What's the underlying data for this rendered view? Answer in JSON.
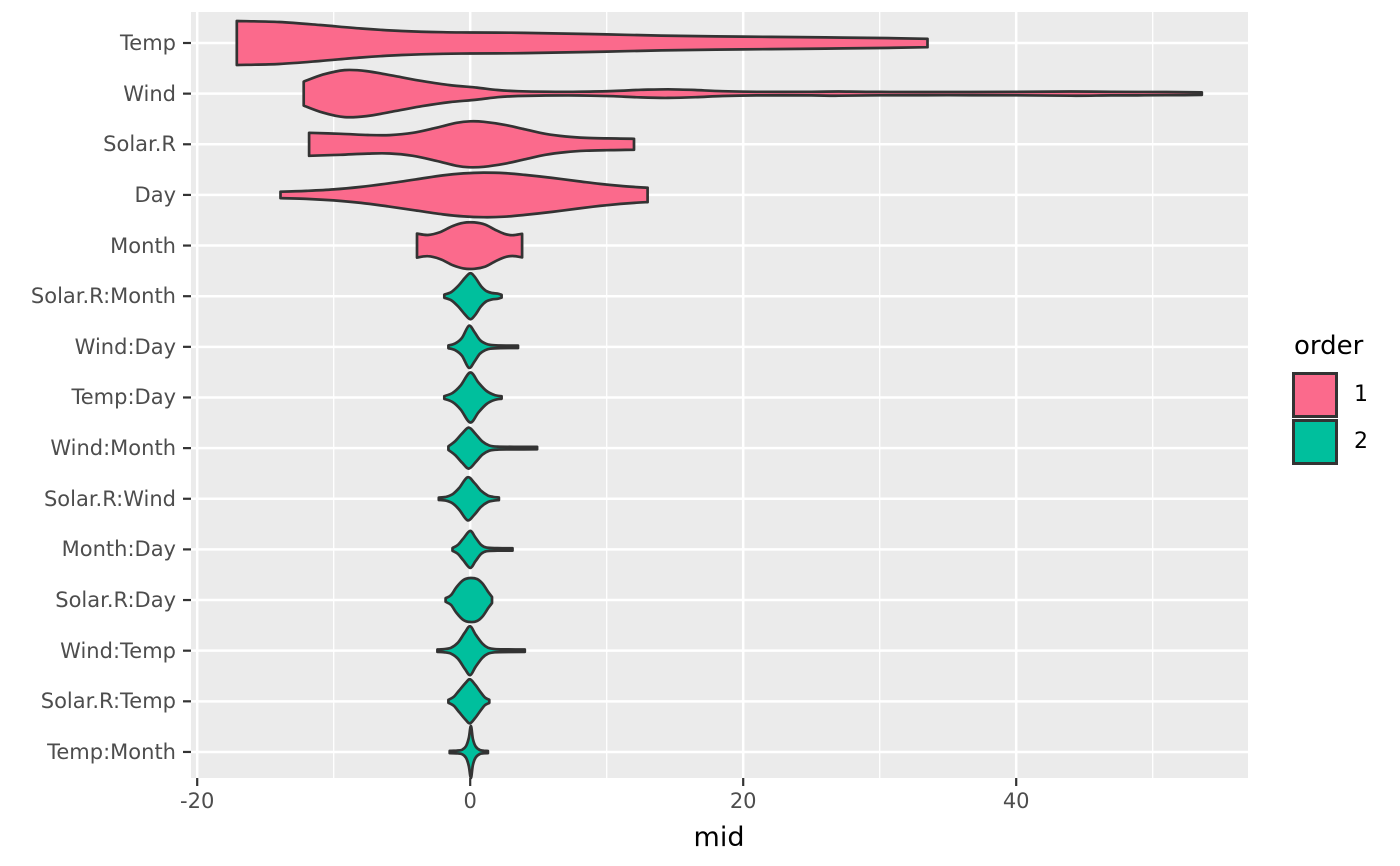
{
  "figure": {
    "background": "#FFFFFF",
    "panel_background": "#EBEBEB",
    "grid_color": "#FFFFFF",
    "violin_outline_color": "#333333",
    "axis_text_color": "#4D4D4D",
    "axis_title_color": "#000000"
  },
  "chart_data": {
    "type": "violin",
    "orientation": "horizontal",
    "title": "",
    "xlabel": "mid",
    "ylabel": "",
    "xlim": [
      -20.5,
      57
    ],
    "x_ticks": [
      -20,
      0,
      20,
      40
    ],
    "x_tick_labels": [
      "-20",
      "0",
      "20",
      "40"
    ],
    "x_minor_gridlines": [
      -10,
      10,
      30,
      50
    ],
    "grid": true,
    "categories": [
      "Temp",
      "Wind",
      "Solar.R",
      "Day",
      "Month",
      "Solar.R:Month",
      "Wind:Day",
      "Temp:Day",
      "Wind:Month",
      "Solar.R:Wind",
      "Month:Day",
      "Solar.R:Day",
      "Wind:Temp",
      "Solar.R:Temp",
      "Temp:Month"
    ],
    "legend": {
      "title": "order",
      "position": "right",
      "entries": [
        {
          "label": "1",
          "color": "#FB6A8C"
        },
        {
          "label": "2",
          "color": "#00BF9D"
        }
      ]
    },
    "violins": [
      {
        "category": "Temp",
        "order": 1,
        "range": [
          -17.1,
          33.5
        ],
        "profile": [
          [
            -17.1,
            22
          ],
          [
            -14,
            21
          ],
          [
            -11,
            18
          ],
          [
            -8,
            14.5
          ],
          [
            -5,
            12
          ],
          [
            -2,
            10.8
          ],
          [
            0,
            10.5
          ],
          [
            3,
            10.3
          ],
          [
            6,
            9.6
          ],
          [
            10,
            8.6
          ],
          [
            14,
            7.4
          ],
          [
            18,
            6.6
          ],
          [
            22,
            6.1
          ],
          [
            26,
            5.6
          ],
          [
            30,
            5.0
          ],
          [
            33.5,
            4.2
          ]
        ]
      },
      {
        "category": "Wind",
        "order": 1,
        "range": [
          -12.2,
          53.6
        ],
        "profile": [
          [
            -12.2,
            12
          ],
          [
            -10.8,
            19
          ],
          [
            -9.2,
            23.5
          ],
          [
            -7.6,
            22.5
          ],
          [
            -5.5,
            17.5
          ],
          [
            -3.5,
            12.5
          ],
          [
            -1.5,
            8.5
          ],
          [
            0.5,
            6
          ],
          [
            2,
            3.6
          ],
          [
            3.5,
            2.4
          ],
          [
            5.5,
            1.9
          ],
          [
            8,
            1.9
          ],
          [
            10.5,
            2.6
          ],
          [
            12.5,
            3.8
          ],
          [
            14.5,
            4.3
          ],
          [
            16.5,
            3.6
          ],
          [
            18.5,
            2.4
          ],
          [
            21,
            1.8
          ],
          [
            25,
            1.8
          ],
          [
            27,
            2.1
          ],
          [
            30,
            1.7
          ],
          [
            35,
            1.6
          ],
          [
            40,
            1.7
          ],
          [
            44,
            2.1
          ],
          [
            47,
            1.8
          ],
          [
            51,
            1.6
          ],
          [
            53.6,
            1.3
          ]
        ]
      },
      {
        "category": "Solar.R",
        "order": 1,
        "range": [
          -11.8,
          12
        ],
        "profile": [
          [
            -11.8,
            11.5
          ],
          [
            -9.5,
            10.5
          ],
          [
            -7.5,
            9.3
          ],
          [
            -5.9,
            9.2
          ],
          [
            -4.2,
            11.5
          ],
          [
            -2.5,
            16.5
          ],
          [
            -1,
            21.5
          ],
          [
            0,
            23
          ],
          [
            1,
            22.5
          ],
          [
            2.5,
            19.5
          ],
          [
            4,
            15
          ],
          [
            5.5,
            10.5
          ],
          [
            7,
            7.8
          ],
          [
            8.5,
            6.4
          ],
          [
            10,
            5.9
          ],
          [
            11,
            5.7
          ],
          [
            12,
            5.5
          ]
        ]
      },
      {
        "category": "Day",
        "order": 1,
        "range": [
          -13.9,
          13
        ],
        "profile": [
          [
            -13.9,
            3.2
          ],
          [
            -12,
            4
          ],
          [
            -10,
            5.5
          ],
          [
            -8,
            8
          ],
          [
            -6,
            11.5
          ],
          [
            -4,
            15.5
          ],
          [
            -2,
            19.5
          ],
          [
            -0.5,
            21.5
          ],
          [
            1,
            22.3
          ],
          [
            2.5,
            21.8
          ],
          [
            4,
            20
          ],
          [
            6,
            17
          ],
          [
            8,
            13.5
          ],
          [
            9.5,
            11
          ],
          [
            11,
            9
          ],
          [
            12.2,
            7.8
          ],
          [
            13,
            7.2
          ]
        ]
      },
      {
        "category": "Month",
        "order": 1,
        "range": [
          -3.9,
          3.8
        ],
        "profile": [
          [
            -3.9,
            12
          ],
          [
            -3.1,
            10.6
          ],
          [
            -2.2,
            13.5
          ],
          [
            -1.3,
            19.5
          ],
          [
            -0.5,
            22.8
          ],
          [
            0.3,
            23.2
          ],
          [
            1.1,
            21
          ],
          [
            1.8,
            16
          ],
          [
            2.5,
            11.8
          ],
          [
            3.1,
            10.4
          ],
          [
            3.8,
            11.8
          ]
        ]
      },
      {
        "category": "Solar.R:Month",
        "order": 2,
        "range": [
          -1.9,
          2.3
        ],
        "profile": [
          [
            -1.9,
            1.6
          ],
          [
            -1.4,
            4
          ],
          [
            -0.9,
            10
          ],
          [
            -0.4,
            18
          ],
          [
            0,
            23
          ],
          [
            0.35,
            19
          ],
          [
            0.8,
            10
          ],
          [
            1.2,
            5
          ],
          [
            1.6,
            3.2
          ],
          [
            2,
            2.6
          ],
          [
            2.3,
            1.4
          ]
        ]
      },
      {
        "category": "Wind:Day",
        "order": 2,
        "range": [
          -1.6,
          3.5
        ],
        "profile": [
          [
            -1.6,
            1.4
          ],
          [
            -1.1,
            3.4
          ],
          [
            -0.6,
            9
          ],
          [
            -0.1,
            21
          ],
          [
            0.3,
            15
          ],
          [
            0.7,
            7
          ],
          [
            1.1,
            3.4
          ],
          [
            1.5,
            1.8
          ],
          [
            2.2,
            1.3
          ],
          [
            3.5,
            1.2
          ]
        ]
      },
      {
        "category": "Temp:Day",
        "order": 2,
        "range": [
          -1.9,
          2.3
        ],
        "profile": [
          [
            -1.9,
            1.4
          ],
          [
            -1.3,
            4.5
          ],
          [
            -0.7,
            12
          ],
          [
            0,
            25
          ],
          [
            0.6,
            15
          ],
          [
            1.2,
            6.5
          ],
          [
            1.8,
            2.4
          ],
          [
            2.3,
            1.3
          ]
        ]
      },
      {
        "category": "Wind:Month",
        "order": 2,
        "range": [
          -1.6,
          4.9
        ],
        "profile": [
          [
            -1.6,
            1.8
          ],
          [
            -1.1,
            7
          ],
          [
            -0.6,
            14.5
          ],
          [
            -0.1,
            20.5
          ],
          [
            0.4,
            14
          ],
          [
            0.9,
            6.5
          ],
          [
            1.4,
            2.6
          ],
          [
            2,
            1.5
          ],
          [
            3.2,
            1.3
          ],
          [
            4.9,
            1.2
          ]
        ]
      },
      {
        "category": "Solar.R:Wind",
        "order": 2,
        "range": [
          -2.3,
          2.1
        ],
        "profile": [
          [
            -2.3,
            1.2
          ],
          [
            -1.8,
            1.8
          ],
          [
            -1.3,
            4.5
          ],
          [
            -0.8,
            11
          ],
          [
            -0.2,
            21.5
          ],
          [
            0.3,
            16
          ],
          [
            0.8,
            8
          ],
          [
            1.3,
            3.2
          ],
          [
            1.7,
            1.9
          ],
          [
            2.1,
            1.3
          ]
        ]
      },
      {
        "category": "Month:Day",
        "order": 2,
        "range": [
          -1.3,
          3.1
        ],
        "profile": [
          [
            -1.3,
            1.4
          ],
          [
            -0.9,
            4.5
          ],
          [
            -0.5,
            11
          ],
          [
            0,
            18.5
          ],
          [
            0.4,
            11.5
          ],
          [
            0.8,
            4.5
          ],
          [
            1.2,
            1.8
          ],
          [
            2,
            1.3
          ],
          [
            3.1,
            1.2
          ]
        ]
      },
      {
        "category": "Solar.R:Day",
        "order": 2,
        "range": [
          -1.8,
          1.6
        ],
        "profile": [
          [
            -1.8,
            1.8
          ],
          [
            -1.4,
            5
          ],
          [
            -1,
            13
          ],
          [
            -0.5,
            20
          ],
          [
            0,
            22
          ],
          [
            0.5,
            21
          ],
          [
            0.9,
            16.5
          ],
          [
            1.3,
            8.5
          ],
          [
            1.6,
            3
          ]
        ]
      },
      {
        "category": "Wind:Temp",
        "order": 2,
        "range": [
          -2.4,
          4.0
        ],
        "profile": [
          [
            -2.4,
            1.2
          ],
          [
            -1.9,
            1.6
          ],
          [
            -1.4,
            3
          ],
          [
            -0.9,
            8
          ],
          [
            -0.4,
            18
          ],
          [
            0,
            24.5
          ],
          [
            0.4,
            16
          ],
          [
            0.9,
            7
          ],
          [
            1.3,
            3
          ],
          [
            1.8,
            1.6
          ],
          [
            2.8,
            1.3
          ],
          [
            4,
            1.2
          ]
        ]
      },
      {
        "category": "Solar.R:Temp",
        "order": 2,
        "range": [
          -1.6,
          1.4
        ],
        "profile": [
          [
            -1.6,
            1.5
          ],
          [
            -1.2,
            4.5
          ],
          [
            -0.8,
            11
          ],
          [
            -0.3,
            19
          ],
          [
            0,
            22
          ],
          [
            0.4,
            16
          ],
          [
            0.8,
            8.5
          ],
          [
            1.1,
            3.6
          ],
          [
            1.4,
            1.6
          ]
        ]
      },
      {
        "category": "Temp:Month",
        "order": 2,
        "range": [
          -1.5,
          1.3
        ],
        "profile": [
          [
            -1.5,
            1.1
          ],
          [
            -1,
            1.4
          ],
          [
            -0.6,
            2.2
          ],
          [
            -0.3,
            6
          ],
          [
            -0.1,
            14
          ],
          [
            0.05,
            26
          ],
          [
            0.2,
            13
          ],
          [
            0.4,
            5.5
          ],
          [
            0.7,
            2
          ],
          [
            1,
            1.3
          ],
          [
            1.3,
            1.1
          ]
        ]
      }
    ]
  }
}
